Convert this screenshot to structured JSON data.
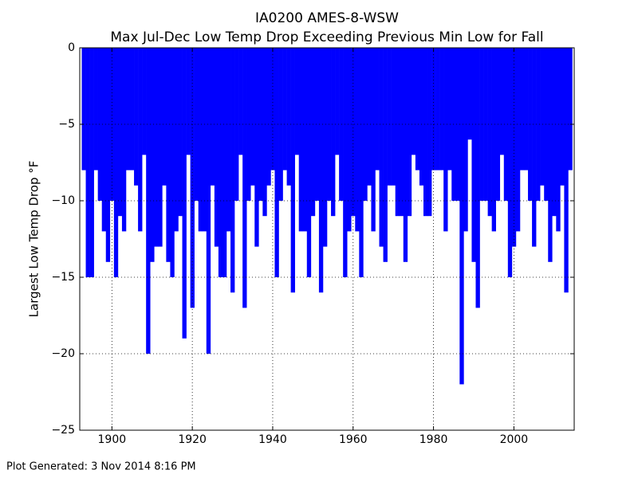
{
  "chart_data": {
    "type": "bar",
    "title": "IA0200 AMES-8-WSW",
    "subtitle": "Max Jul-Dec Low Temp Drop Exceeding Previous Min Low for Fall",
    "y_label": "Largest Low Temp Drop °F",
    "footer": "Plot Generated: 3 Nov 2014 8:16 PM",
    "color": "#0000ff",
    "grid": true,
    "xlim": [
      1892,
      2015
    ],
    "ylim": [
      -25,
      0
    ],
    "xticks": [
      1900,
      1920,
      1940,
      1960,
      1980,
      2000
    ],
    "yticks": [
      {
        "value": -25,
        "label": "−25"
      },
      {
        "value": -20,
        "label": "−20"
      },
      {
        "value": -15,
        "label": "−15"
      },
      {
        "value": -10,
        "label": "−10"
      },
      {
        "value": -5,
        "label": "−5"
      },
      0
    ],
    "x": [
      1893,
      1894,
      1895,
      1896,
      1897,
      1898,
      1899,
      1900,
      1901,
      1902,
      1903,
      1904,
      1905,
      1906,
      1907,
      1908,
      1909,
      1910,
      1911,
      1912,
      1913,
      1914,
      1915,
      1916,
      1917,
      1918,
      1919,
      1920,
      1921,
      1922,
      1923,
      1924,
      1925,
      1926,
      1927,
      1928,
      1929,
      1930,
      1931,
      1932,
      1933,
      1934,
      1935,
      1936,
      1937,
      1938,
      1939,
      1940,
      1941,
      1942,
      1943,
      1944,
      1945,
      1946,
      1947,
      1948,
      1949,
      1950,
      1951,
      1952,
      1953,
      1954,
      1955,
      1956,
      1957,
      1958,
      1959,
      1960,
      1961,
      1962,
      1963,
      1964,
      1965,
      1966,
      1967,
      1968,
      1969,
      1970,
      1971,
      1972,
      1973,
      1974,
      1975,
      1976,
      1977,
      1978,
      1979,
      1980,
      1981,
      1982,
      1983,
      1984,
      1985,
      1986,
      1987,
      1988,
      1989,
      1990,
      1991,
      1992,
      1993,
      1994,
      1995,
      1996,
      1997,
      1998,
      1999,
      2000,
      2001,
      2002,
      2003,
      2004,
      2005,
      2006,
      2007,
      2008,
      2009,
      2010,
      2011,
      2012,
      2013,
      2014
    ],
    "values": [
      -8,
      -15,
      -15,
      -8,
      -10,
      -12,
      -14,
      -10,
      -15,
      -11,
      -12,
      -8,
      -8,
      -9,
      -12,
      -7,
      -20,
      -14,
      -13,
      -13,
      -9,
      -14,
      -15,
      -12,
      -11,
      -19,
      -7,
      -17,
      -10,
      -12,
      -12,
      -20,
      -9,
      -13,
      -15,
      -15,
      -12,
      -16,
      -10,
      -7,
      -17,
      -10,
      -9,
      -13,
      -10,
      -11,
      -9,
      -8,
      -15,
      -10,
      -8,
      -9,
      -16,
      -7,
      -12,
      -12,
      -15,
      -11,
      -10,
      -16,
      -13,
      -10,
      -11,
      -7,
      -10,
      -15,
      -12,
      -11,
      -12,
      -15,
      -10,
      -9,
      -12,
      -8,
      -13,
      -14,
      -9,
      -9,
      -11,
      -11,
      -14,
      -11,
      -7,
      -8,
      -9,
      -11,
      -11,
      -8,
      -8,
      -8,
      -12,
      -8,
      -10,
      -10,
      -22,
      -12,
      -6,
      -14,
      -17,
      -10,
      -10,
      -11,
      -12,
      -10,
      -7,
      -10,
      -15,
      -13,
      -12,
      -8,
      -8,
      -10,
      -13,
      -10,
      -9,
      -10,
      -14,
      -11,
      -12,
      -9,
      -16,
      -8
    ]
  }
}
